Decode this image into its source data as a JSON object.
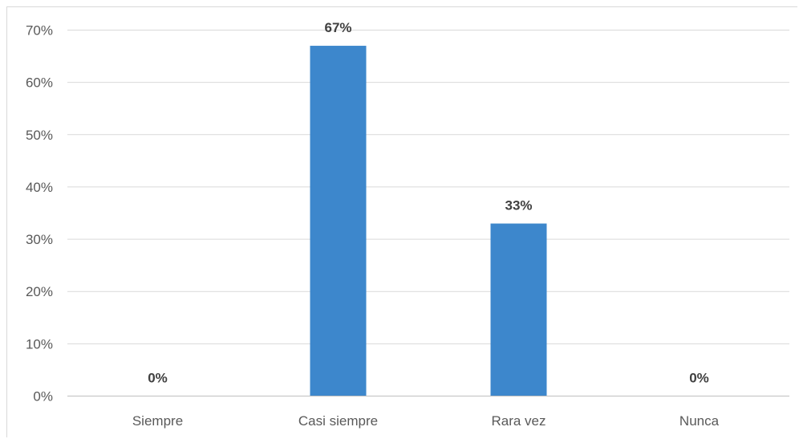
{
  "chart_data": {
    "type": "bar",
    "categories": [
      "Siempre",
      "Casi siempre",
      "Rara vez",
      "Nunca"
    ],
    "values": [
      0,
      67,
      33,
      0
    ],
    "data_labels": [
      "0%",
      "67%",
      "33%",
      "0%"
    ],
    "y_ticks": [
      "0%",
      "10%",
      "20%",
      "30%",
      "40%",
      "50%",
      "60%",
      "70%"
    ],
    "y_tick_values": [
      0,
      10,
      20,
      30,
      40,
      50,
      60,
      70
    ],
    "ylim": [
      0,
      70
    ],
    "grid": true,
    "legend": "none",
    "bar_color": "#3d87cc",
    "title": "",
    "xlabel": "",
    "ylabel": ""
  }
}
